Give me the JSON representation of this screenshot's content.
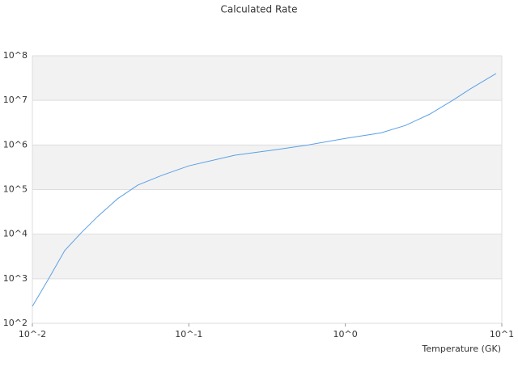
{
  "chart_data": {
    "type": "line",
    "title": "Calculated Rate",
    "x_label": "Temperature (GK)",
    "x": [
      0.01,
      0.0127,
      0.0161,
      0.0205,
      0.026,
      0.035,
      0.0472,
      0.0675,
      0.1,
      0.197,
      0.358,
      0.578,
      1,
      1.69,
      2.42,
      3.46,
      4.94,
      6.28,
      9.2
    ],
    "series": [
      {
        "name": "Calculated Rate",
        "color": "#5aa0e6",
        "values": [
          240,
          1000,
          4300,
          10700,
          24500,
          62000,
          126000,
          209000,
          340000,
          590000,
          780000,
          1000000,
          1400000,
          1870000,
          2740000,
          4900000,
          10400000,
          18000000,
          40000000
        ]
      }
    ],
    "xlim": [
      0.01,
      10
    ],
    "ylim": [
      100,
      100000000
    ],
    "xticks": [
      {
        "value": 0.01,
        "label": "10^-2"
      },
      {
        "value": 0.1,
        "label": "10^-1"
      },
      {
        "value": 1,
        "label": "10^0"
      },
      {
        "value": 10,
        "label": "10^1"
      }
    ],
    "yticks": [
      {
        "value": 100,
        "label": "10^2"
      },
      {
        "value": 1000,
        "label": "10^3"
      },
      {
        "value": 10000,
        "label": "10^4"
      },
      {
        "value": 100000,
        "label": "10^5"
      },
      {
        "value": 1000000,
        "label": "10^6"
      },
      {
        "value": 10000000,
        "label": "10^7"
      },
      {
        "value": 100000000,
        "label": "10^8"
      }
    ],
    "xscale": "log",
    "yscale": "log",
    "grid": true,
    "band_color": "#f2f2f2"
  }
}
